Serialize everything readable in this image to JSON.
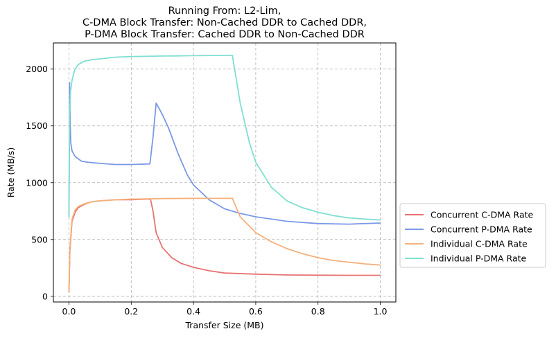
{
  "chart_data": {
    "type": "line",
    "title_lines": [
      "Running From: L2-Lim,",
      "C-DMA Block Transfer: Non-Cached DDR to Cached DDR,",
      "P-DMA Block Transfer: Cached DDR to Non-Cached DDR"
    ],
    "xlabel": "Transfer Size (MB)",
    "ylabel": "Rate (MB/s)",
    "xlim": [
      -0.05,
      1.05
    ],
    "ylim": [
      -50,
      2230
    ],
    "xticks": [
      0,
      0.2,
      0.4,
      0.6,
      0.8,
      1.0
    ],
    "xtick_labels": [
      "0.0",
      "0.2",
      "0.4",
      "0.6",
      "0.8",
      "1.0"
    ],
    "yticks": [
      0,
      500,
      1000,
      1500,
      2000
    ],
    "ytick_labels": [
      "0",
      "500",
      "1000",
      "1500",
      "2000"
    ],
    "grid": true,
    "legend_placement": "outside-right-bottom",
    "series": [
      {
        "name": "Concurrent C-DMA Rate",
        "color": "#e87272",
        "x": [
          0,
          0.003,
          0.01,
          0.02,
          0.03,
          0.05,
          0.07,
          0.1,
          0.15,
          0.2,
          0.25,
          0.262,
          0.27,
          0.28,
          0.3,
          0.33,
          0.36,
          0.4,
          0.45,
          0.5,
          0.6,
          0.7,
          0.8,
          0.9,
          1.0
        ],
        "y": [
          40,
          400,
          660,
          740,
          780,
          810,
          830,
          840,
          850,
          850,
          855,
          855,
          750,
          560,
          430,
          340,
          290,
          255,
          225,
          205,
          195,
          188,
          186,
          185,
          185
        ]
      },
      {
        "name": "Concurrent P-DMA Rate",
        "color": "#7b98e6",
        "x": [
          0,
          0.002,
          0.004,
          0.006,
          0.01,
          0.02,
          0.04,
          0.06,
          0.1,
          0.15,
          0.2,
          0.26,
          0.27,
          0.28,
          0.29,
          0.3,
          0.32,
          0.35,
          0.38,
          0.4,
          0.45,
          0.5,
          0.55,
          0.6,
          0.7,
          0.8,
          0.9,
          1.0
        ],
        "y": [
          700,
          1880,
          1500,
          1350,
          1280,
          1230,
          1190,
          1180,
          1170,
          1160,
          1160,
          1165,
          1400,
          1700,
          1650,
          1600,
          1480,
          1260,
          1070,
          980,
          850,
          770,
          730,
          700,
          660,
          640,
          635,
          645
        ]
      },
      {
        "name": "Individual C-DMA Rate",
        "color": "#f5b07a",
        "x": [
          0,
          0.003,
          0.01,
          0.02,
          0.03,
          0.05,
          0.07,
          0.1,
          0.15,
          0.2,
          0.25,
          0.3,
          0.4,
          0.5,
          0.525,
          0.55,
          0.6,
          0.65,
          0.7,
          0.75,
          0.8,
          0.85,
          0.9,
          0.95,
          1.0
        ],
        "y": [
          45,
          420,
          680,
          760,
          790,
          815,
          830,
          840,
          850,
          855,
          858,
          860,
          862,
          862,
          862,
          700,
          560,
          480,
          420,
          375,
          340,
          315,
          300,
          285,
          275
        ]
      },
      {
        "name": "Individual P-DMA Rate",
        "color": "#7fdfd0",
        "x": [
          0,
          0.002,
          0.005,
          0.01,
          0.015,
          0.02,
          0.03,
          0.05,
          0.08,
          0.1,
          0.15,
          0.2,
          0.3,
          0.4,
          0.5,
          0.525,
          0.55,
          0.58,
          0.6,
          0.65,
          0.7,
          0.75,
          0.8,
          0.85,
          0.9,
          0.95,
          1.0
        ],
        "y": [
          700,
          1600,
          1800,
          1900,
          1960,
          2000,
          2040,
          2070,
          2085,
          2090,
          2105,
          2110,
          2115,
          2118,
          2120,
          2120,
          1700,
          1350,
          1180,
          960,
          840,
          780,
          740,
          710,
          690,
          680,
          672
        ]
      }
    ]
  }
}
